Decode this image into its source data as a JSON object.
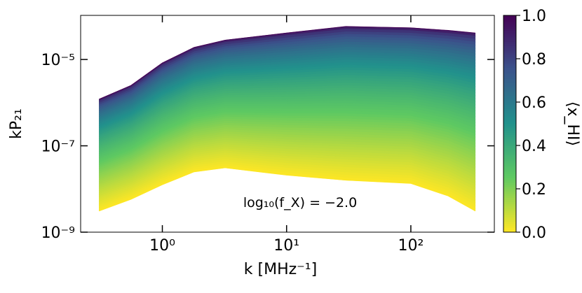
{
  "chart_data": {
    "type": "band",
    "x_label": "k [MHz⁻¹]",
    "y_label": "kP₂₁",
    "annotation": "log₁₀(f_X) = −2.0",
    "x": [
      0.31,
      0.56,
      1.0,
      1.8,
      3.2,
      10,
      30,
      100,
      200,
      330
    ],
    "series": [
      {
        "name": "upper",
        "values": [
          1.2e-06,
          2.5e-06,
          8.3e-06,
          1.9e-05,
          2.8e-05,
          4.1e-05,
          5.8e-05,
          5.4e-05,
          4.7e-05,
          4.1e-05
        ]
      },
      {
        "name": "lower",
        "values": [
          3.1e-09,
          5.8e-09,
          1.26e-08,
          2.5e-08,
          3.1e-08,
          2.1e-08,
          1.6e-08,
          1.35e-08,
          6.9e-09,
          3.1e-09
        ]
      }
    ],
    "log_x": true,
    "log_y": true,
    "xlim": [
      0.22,
      470
    ],
    "ylim": [
      1e-09,
      0.000105
    ],
    "xticks": [
      {
        "value": 1,
        "label": "10⁰"
      },
      {
        "value": 10,
        "label": "10¹"
      },
      {
        "value": 100,
        "label": "10²"
      }
    ],
    "yticks": [
      {
        "value": 1e-09,
        "label": "10⁻⁹"
      },
      {
        "value": 1e-07,
        "label": "10⁻⁷"
      },
      {
        "value": 1e-05,
        "label": "10⁻⁵"
      }
    ],
    "colorbar": {
      "label": "⟨x_HI⟩",
      "lim": [
        0,
        1
      ],
      "ticks": [
        {
          "value": 0,
          "label": "0.0"
        },
        {
          "value": 0.2,
          "label": "0.2"
        },
        {
          "value": 0.4,
          "label": "0.4"
        },
        {
          "value": 0.6,
          "label": "0.6"
        },
        {
          "value": 0.8,
          "label": "0.8"
        },
        {
          "value": 1,
          "label": "1.0"
        }
      ],
      "colormap": [
        "#fde725",
        "#5ec962",
        "#21918c",
        "#3b528b",
        "#440154"
      ]
    }
  }
}
